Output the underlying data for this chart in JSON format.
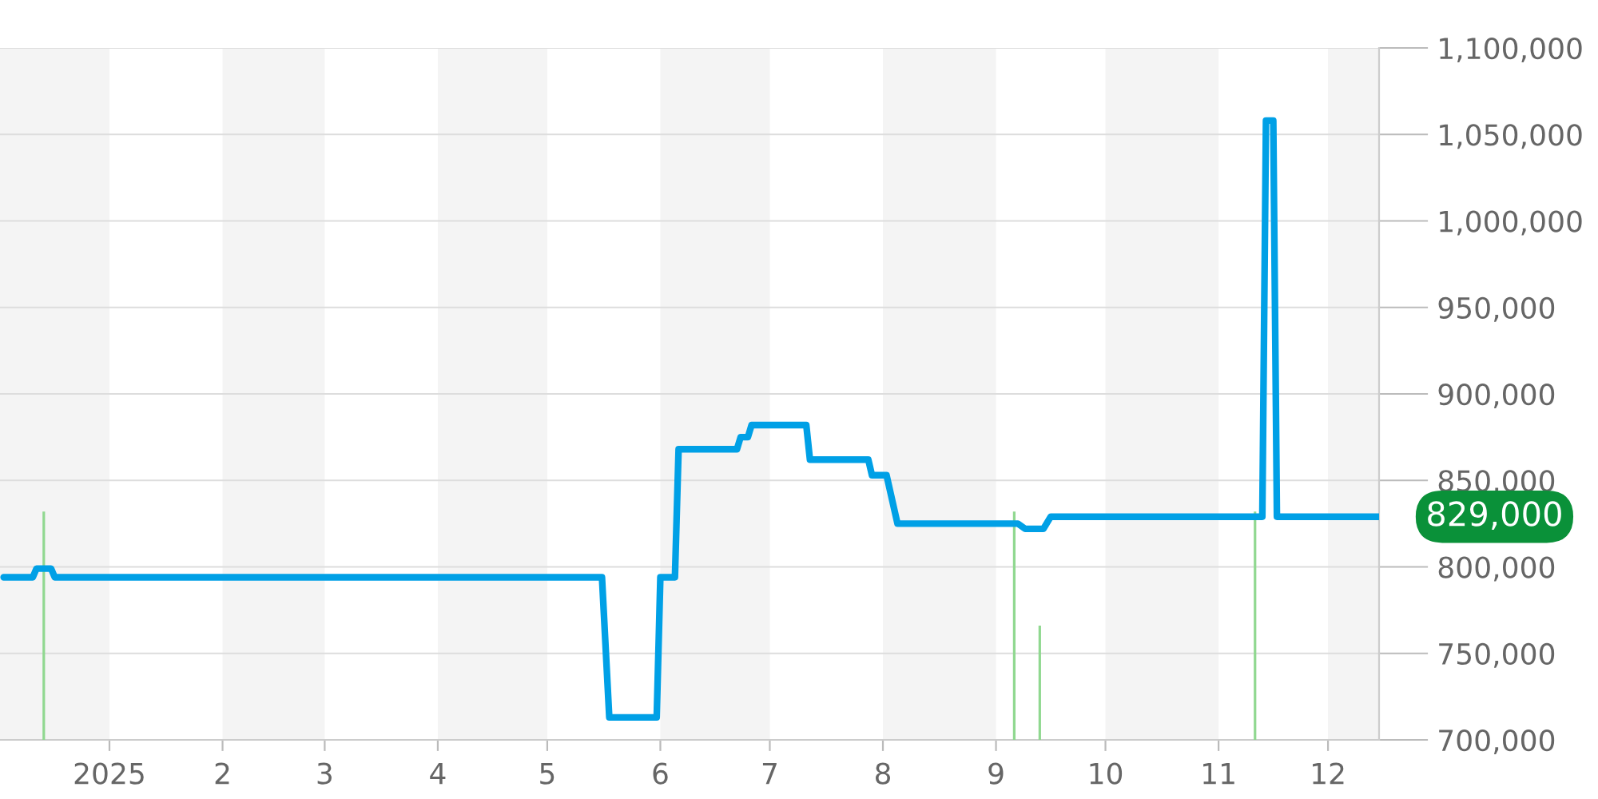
{
  "chart_data": {
    "type": "line",
    "xlim": [
      "2024-12-02",
      "2025-12-15"
    ],
    "xticks": [
      {
        "value": "2025-01-01",
        "label": "2025"
      },
      {
        "value": "2025-02-01",
        "label": "2"
      },
      {
        "value": "2025-03-01",
        "label": "3"
      },
      {
        "value": "2025-04-01",
        "label": "4"
      },
      {
        "value": "2025-05-01",
        "label": "5"
      },
      {
        "value": "2025-06-01",
        "label": "6"
      },
      {
        "value": "2025-07-01",
        "label": "7"
      },
      {
        "value": "2025-08-01",
        "label": "8"
      },
      {
        "value": "2025-09-01",
        "label": "9"
      },
      {
        "value": "2025-10-01",
        "label": "10"
      },
      {
        "value": "2025-11-01",
        "label": "11"
      },
      {
        "value": "2025-12-01",
        "label": "12"
      }
    ],
    "ylim": [
      700000,
      1100000
    ],
    "yticks": [
      {
        "value": 700000,
        "label": "700,000"
      },
      {
        "value": 750000,
        "label": "750,000"
      },
      {
        "value": 800000,
        "label": "800,000"
      },
      {
        "value": 850000,
        "label": "850,000"
      },
      {
        "value": 900000,
        "label": "900,000"
      },
      {
        "value": 950000,
        "label": "950,000"
      },
      {
        "value": 1000000,
        "label": "1,000,000"
      },
      {
        "value": 1050000,
        "label": "1,050,000"
      },
      {
        "value": 1100000,
        "label": "1,100,000"
      }
    ],
    "grid": "y",
    "series": [
      {
        "type": "bar",
        "color": "#90d890",
        "x": [
          "2024-12-14",
          "2025-09-06",
          "2025-09-13",
          "2025-11-11"
        ],
        "values": [
          832000,
          832000,
          766000,
          832000
        ]
      },
      {
        "color": "#00a0e6",
        "x": [
          "2024-12-03",
          "2024-12-11",
          "2024-12-12",
          "2024-12-16",
          "2024-12-17",
          "2025-05-16",
          "2025-05-18",
          "2025-05-31",
          "2025-06-01",
          "2025-06-05",
          "2025-06-06",
          "2025-06-22",
          "2025-06-23",
          "2025-06-25",
          "2025-06-26",
          "2025-07-11",
          "2025-07-12",
          "2025-07-28",
          "2025-07-29",
          "2025-08-02",
          "2025-08-05",
          "2025-09-07",
          "2025-09-09",
          "2025-09-14",
          "2025-09-16",
          "2025-11-13",
          "2025-11-14",
          "2025-11-16",
          "2025-11-17",
          "2025-12-15"
        ],
        "values": [
          794000,
          794000,
          799000,
          799000,
          794000,
          794000,
          713000,
          713000,
          794000,
          794000,
          868000,
          868000,
          875000,
          875000,
          882000,
          882000,
          862000,
          862000,
          853000,
          853000,
          825000,
          825000,
          822000,
          822000,
          829000,
          829000,
          1058000,
          1058000,
          829000,
          829000
        ]
      }
    ],
    "bands": [
      {
        "axis": "x",
        "from": "2024-12-02",
        "to": "2025-01-01",
        "color": "#f4f4f4"
      },
      {
        "axis": "x",
        "from": "2025-02-01",
        "to": "2025-03-01",
        "color": "#f4f4f4"
      },
      {
        "axis": "x",
        "from": "2025-04-01",
        "to": "2025-05-01",
        "color": "#f4f4f4"
      },
      {
        "axis": "x",
        "from": "2025-06-01",
        "to": "2025-07-01",
        "color": "#f4f4f4"
      },
      {
        "axis": "x",
        "from": "2025-08-01",
        "to": "2025-09-01",
        "color": "#f4f4f4"
      },
      {
        "axis": "x",
        "from": "2025-10-01",
        "to": "2025-11-01",
        "color": "#f4f4f4"
      },
      {
        "axis": "x",
        "from": "2025-12-01",
        "to": "2025-12-15",
        "color": "#f4f4f4"
      }
    ],
    "annotations": [
      {
        "text": "829,000",
        "x": "2025-12-15",
        "y": 829000
      }
    ]
  }
}
